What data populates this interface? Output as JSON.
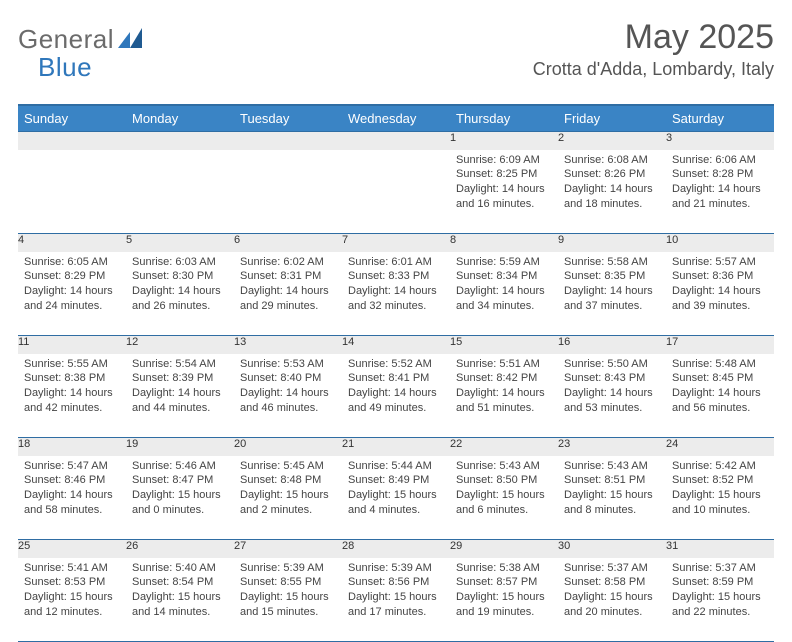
{
  "brand": {
    "general": "General",
    "blue": "Blue"
  },
  "title": "May 2025",
  "location": "Crotta d'Adda, Lombardy, Italy",
  "colors": {
    "header_bg": "#3a84c5",
    "header_border": "#2f6da3",
    "daynum_bg": "#ececec",
    "text": "#444444",
    "title_color": "#555555"
  },
  "dayNames": [
    "Sunday",
    "Monday",
    "Tuesday",
    "Wednesday",
    "Thursday",
    "Friday",
    "Saturday"
  ],
  "weeks": [
    [
      {
        "n": "",
        "lines": [
          "",
          "",
          ""
        ]
      },
      {
        "n": "",
        "lines": [
          "",
          "",
          ""
        ]
      },
      {
        "n": "",
        "lines": [
          "",
          "",
          ""
        ]
      },
      {
        "n": "",
        "lines": [
          "",
          "",
          ""
        ]
      },
      {
        "n": "1",
        "lines": [
          "Sunrise: 6:09 AM",
          "Sunset: 8:25 PM",
          "Daylight: 14 hours and 16 minutes."
        ]
      },
      {
        "n": "2",
        "lines": [
          "Sunrise: 6:08 AM",
          "Sunset: 8:26 PM",
          "Daylight: 14 hours and 18 minutes."
        ]
      },
      {
        "n": "3",
        "lines": [
          "Sunrise: 6:06 AM",
          "Sunset: 8:28 PM",
          "Daylight: 14 hours and 21 minutes."
        ]
      }
    ],
    [
      {
        "n": "4",
        "lines": [
          "Sunrise: 6:05 AM",
          "Sunset: 8:29 PM",
          "Daylight: 14 hours and 24 minutes."
        ]
      },
      {
        "n": "5",
        "lines": [
          "Sunrise: 6:03 AM",
          "Sunset: 8:30 PM",
          "Daylight: 14 hours and 26 minutes."
        ]
      },
      {
        "n": "6",
        "lines": [
          "Sunrise: 6:02 AM",
          "Sunset: 8:31 PM",
          "Daylight: 14 hours and 29 minutes."
        ]
      },
      {
        "n": "7",
        "lines": [
          "Sunrise: 6:01 AM",
          "Sunset: 8:33 PM",
          "Daylight: 14 hours and 32 minutes."
        ]
      },
      {
        "n": "8",
        "lines": [
          "Sunrise: 5:59 AM",
          "Sunset: 8:34 PM",
          "Daylight: 14 hours and 34 minutes."
        ]
      },
      {
        "n": "9",
        "lines": [
          "Sunrise: 5:58 AM",
          "Sunset: 8:35 PM",
          "Daylight: 14 hours and 37 minutes."
        ]
      },
      {
        "n": "10",
        "lines": [
          "Sunrise: 5:57 AM",
          "Sunset: 8:36 PM",
          "Daylight: 14 hours and 39 minutes."
        ]
      }
    ],
    [
      {
        "n": "11",
        "lines": [
          "Sunrise: 5:55 AM",
          "Sunset: 8:38 PM",
          "Daylight: 14 hours and 42 minutes."
        ]
      },
      {
        "n": "12",
        "lines": [
          "Sunrise: 5:54 AM",
          "Sunset: 8:39 PM",
          "Daylight: 14 hours and 44 minutes."
        ]
      },
      {
        "n": "13",
        "lines": [
          "Sunrise: 5:53 AM",
          "Sunset: 8:40 PM",
          "Daylight: 14 hours and 46 minutes."
        ]
      },
      {
        "n": "14",
        "lines": [
          "Sunrise: 5:52 AM",
          "Sunset: 8:41 PM",
          "Daylight: 14 hours and 49 minutes."
        ]
      },
      {
        "n": "15",
        "lines": [
          "Sunrise: 5:51 AM",
          "Sunset: 8:42 PM",
          "Daylight: 14 hours and 51 minutes."
        ]
      },
      {
        "n": "16",
        "lines": [
          "Sunrise: 5:50 AM",
          "Sunset: 8:43 PM",
          "Daylight: 14 hours and 53 minutes."
        ]
      },
      {
        "n": "17",
        "lines": [
          "Sunrise: 5:48 AM",
          "Sunset: 8:45 PM",
          "Daylight: 14 hours and 56 minutes."
        ]
      }
    ],
    [
      {
        "n": "18",
        "lines": [
          "Sunrise: 5:47 AM",
          "Sunset: 8:46 PM",
          "Daylight: 14 hours and 58 minutes."
        ]
      },
      {
        "n": "19",
        "lines": [
          "Sunrise: 5:46 AM",
          "Sunset: 8:47 PM",
          "Daylight: 15 hours and 0 minutes."
        ]
      },
      {
        "n": "20",
        "lines": [
          "Sunrise: 5:45 AM",
          "Sunset: 8:48 PM",
          "Daylight: 15 hours and 2 minutes."
        ]
      },
      {
        "n": "21",
        "lines": [
          "Sunrise: 5:44 AM",
          "Sunset: 8:49 PM",
          "Daylight: 15 hours and 4 minutes."
        ]
      },
      {
        "n": "22",
        "lines": [
          "Sunrise: 5:43 AM",
          "Sunset: 8:50 PM",
          "Daylight: 15 hours and 6 minutes."
        ]
      },
      {
        "n": "23",
        "lines": [
          "Sunrise: 5:43 AM",
          "Sunset: 8:51 PM",
          "Daylight: 15 hours and 8 minutes."
        ]
      },
      {
        "n": "24",
        "lines": [
          "Sunrise: 5:42 AM",
          "Sunset: 8:52 PM",
          "Daylight: 15 hours and 10 minutes."
        ]
      }
    ],
    [
      {
        "n": "25",
        "lines": [
          "Sunrise: 5:41 AM",
          "Sunset: 8:53 PM",
          "Daylight: 15 hours and 12 minutes."
        ]
      },
      {
        "n": "26",
        "lines": [
          "Sunrise: 5:40 AM",
          "Sunset: 8:54 PM",
          "Daylight: 15 hours and 14 minutes."
        ]
      },
      {
        "n": "27",
        "lines": [
          "Sunrise: 5:39 AM",
          "Sunset: 8:55 PM",
          "Daylight: 15 hours and 15 minutes."
        ]
      },
      {
        "n": "28",
        "lines": [
          "Sunrise: 5:39 AM",
          "Sunset: 8:56 PM",
          "Daylight: 15 hours and 17 minutes."
        ]
      },
      {
        "n": "29",
        "lines": [
          "Sunrise: 5:38 AM",
          "Sunset: 8:57 PM",
          "Daylight: 15 hours and 19 minutes."
        ]
      },
      {
        "n": "30",
        "lines": [
          "Sunrise: 5:37 AM",
          "Sunset: 8:58 PM",
          "Daylight: 15 hours and 20 minutes."
        ]
      },
      {
        "n": "31",
        "lines": [
          "Sunrise: 5:37 AM",
          "Sunset: 8:59 PM",
          "Daylight: 15 hours and 22 minutes."
        ]
      }
    ]
  ]
}
